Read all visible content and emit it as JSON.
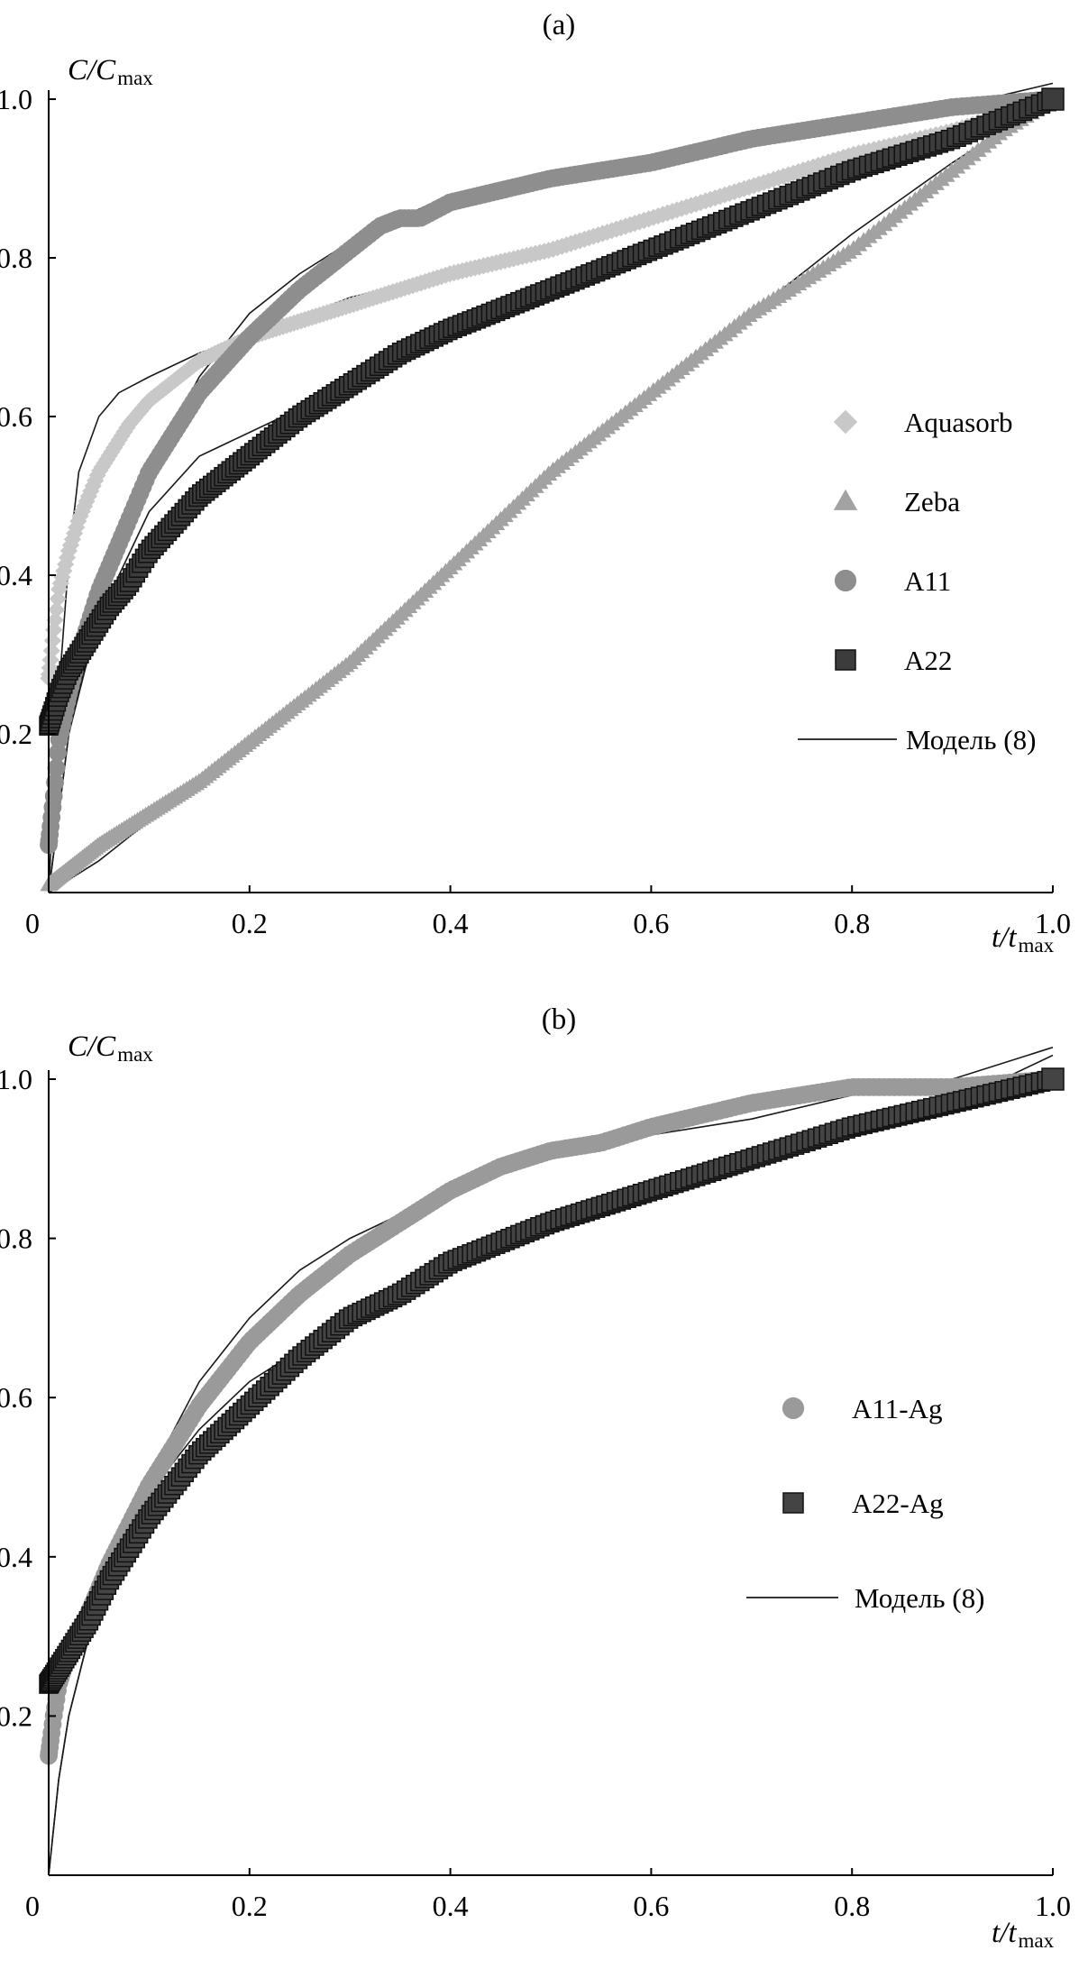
{
  "colors": {
    "Aquasorb": "#c8c8c8",
    "Zeba": "#a2a2a2",
    "A11": "#8e8e8e",
    "A22": "#3c3c3c",
    "A11-Ag": "#9a9a9a",
    "A22-Ag": "#444444",
    "model": "#1a1a1a",
    "axis": "#000000"
  },
  "chart_data": [
    {
      "type": "scatter",
      "panel_label": "(a)",
      "ylabel": {
        "main": "C/C",
        "sub": "max"
      },
      "xlabel": {
        "main": "t/t",
        "sub": "max"
      },
      "xlim": [
        0,
        1.0
      ],
      "ylim": [
        0,
        1.0
      ],
      "xticks": [
        {
          "value": 0,
          "label": "0"
        },
        {
          "value": 0.2,
          "label": "0.2"
        },
        {
          "value": 0.4,
          "label": "0.4"
        },
        {
          "value": 0.6,
          "label": "0.6"
        },
        {
          "value": 0.8,
          "label": "0.8"
        },
        {
          "value": 1.0,
          "label": "1.0"
        }
      ],
      "yticks": [
        {
          "value": 0.2,
          "label": "0.2"
        },
        {
          "value": 0.4,
          "label": "0.4"
        },
        {
          "value": 0.6,
          "label": "0.6"
        },
        {
          "value": 0.8,
          "label": "0.8"
        },
        {
          "value": 1.0,
          "label": "1.0"
        }
      ],
      "legend": [
        {
          "label": "Aquasorb",
          "marker": "diamond",
          "series": "Aquasorb"
        },
        {
          "label": "Zeba",
          "marker": "triangle",
          "series": "Zeba"
        },
        {
          "label": "A11",
          "marker": "circle",
          "series": "A11"
        },
        {
          "label": "A22",
          "marker": "square",
          "series": "A22"
        },
        {
          "label": "Модель (8)",
          "marker": "line",
          "series": "model"
        }
      ],
      "series": [
        {
          "name": "Aquasorb",
          "marker": "diamond",
          "points": [
            [
              0.0,
              0.27
            ],
            [
              0.005,
              0.33
            ],
            [
              0.01,
              0.38
            ],
            [
              0.02,
              0.43
            ],
            [
              0.03,
              0.47
            ],
            [
              0.05,
              0.53
            ],
            [
              0.08,
              0.59
            ],
            [
              0.1,
              0.62
            ],
            [
              0.15,
              0.67
            ],
            [
              0.2,
              0.7
            ],
            [
              0.25,
              0.72
            ],
            [
              0.3,
              0.74
            ],
            [
              0.35,
              0.76
            ],
            [
              0.4,
              0.78
            ],
            [
              0.5,
              0.81
            ],
            [
              0.6,
              0.85
            ],
            [
              0.7,
              0.89
            ],
            [
              0.8,
              0.93
            ],
            [
              0.9,
              0.96
            ],
            [
              1.0,
              1.0
            ]
          ]
        },
        {
          "name": "Zeba",
          "marker": "triangle",
          "points": [
            [
              0.0,
              0.01
            ],
            [
              0.05,
              0.06
            ],
            [
              0.1,
              0.1
            ],
            [
              0.15,
              0.14
            ],
            [
              0.2,
              0.19
            ],
            [
              0.25,
              0.24
            ],
            [
              0.3,
              0.29
            ],
            [
              0.35,
              0.35
            ],
            [
              0.4,
              0.41
            ],
            [
              0.45,
              0.47
            ],
            [
              0.5,
              0.53
            ],
            [
              0.55,
              0.58
            ],
            [
              0.6,
              0.63
            ],
            [
              0.65,
              0.68
            ],
            [
              0.7,
              0.73
            ],
            [
              0.75,
              0.77
            ],
            [
              0.8,
              0.81
            ],
            [
              0.85,
              0.86
            ],
            [
              0.9,
              0.91
            ],
            [
              0.95,
              0.96
            ],
            [
              1.0,
              1.0
            ]
          ]
        },
        {
          "name": "A11",
          "marker": "circle",
          "points": [
            [
              0.0,
              0.06
            ],
            [
              0.005,
              0.12
            ],
            [
              0.01,
              0.19
            ],
            [
              0.02,
              0.25
            ],
            [
              0.03,
              0.3
            ],
            [
              0.05,
              0.38
            ],
            [
              0.08,
              0.47
            ],
            [
              0.1,
              0.53
            ],
            [
              0.15,
              0.63
            ],
            [
              0.2,
              0.7
            ],
            [
              0.25,
              0.76
            ],
            [
              0.3,
              0.81
            ],
            [
              0.33,
              0.84
            ],
            [
              0.35,
              0.85
            ],
            [
              0.37,
              0.85
            ],
            [
              0.4,
              0.87
            ],
            [
              0.5,
              0.9
            ],
            [
              0.6,
              0.92
            ],
            [
              0.7,
              0.95
            ],
            [
              0.8,
              0.97
            ],
            [
              0.9,
              0.99
            ],
            [
              1.0,
              1.0
            ]
          ]
        },
        {
          "name": "A22",
          "marker": "square",
          "points": [
            [
              0.0,
              0.21
            ],
            [
              0.005,
              0.23
            ],
            [
              0.01,
              0.25
            ],
            [
              0.02,
              0.28
            ],
            [
              0.04,
              0.32
            ],
            [
              0.06,
              0.36
            ],
            [
              0.08,
              0.39
            ],
            [
              0.1,
              0.43
            ],
            [
              0.15,
              0.5
            ],
            [
              0.2,
              0.55
            ],
            [
              0.25,
              0.6
            ],
            [
              0.3,
              0.64
            ],
            [
              0.35,
              0.68
            ],
            [
              0.4,
              0.71
            ],
            [
              0.5,
              0.76
            ],
            [
              0.6,
              0.81
            ],
            [
              0.7,
              0.86
            ],
            [
              0.8,
              0.91
            ],
            [
              0.9,
              0.95
            ],
            [
              1.0,
              1.0
            ]
          ]
        }
      ],
      "model_curves": [
        {
          "fits": "Aquasorb",
          "points": [
            [
              0.0,
              0.0
            ],
            [
              0.01,
              0.25
            ],
            [
              0.02,
              0.42
            ],
            [
              0.03,
              0.53
            ],
            [
              0.05,
              0.6
            ],
            [
              0.07,
              0.63
            ],
            [
              0.1,
              0.65
            ],
            [
              0.15,
              0.68
            ],
            [
              0.2,
              0.7
            ],
            [
              0.3,
              0.75
            ],
            [
              0.4,
              0.78
            ],
            [
              0.5,
              0.81
            ],
            [
              0.6,
              0.85
            ],
            [
              0.7,
              0.89
            ],
            [
              0.8,
              0.93
            ],
            [
              0.9,
              0.96
            ],
            [
              1.0,
              0.99
            ]
          ]
        },
        {
          "fits": "Zeba",
          "points": [
            [
              0.0,
              0.0
            ],
            [
              0.05,
              0.04
            ],
            [
              0.1,
              0.09
            ],
            [
              0.2,
              0.18
            ],
            [
              0.3,
              0.29
            ],
            [
              0.4,
              0.41
            ],
            [
              0.5,
              0.52
            ],
            [
              0.6,
              0.63
            ],
            [
              0.7,
              0.73
            ],
            [
              0.8,
              0.83
            ],
            [
              0.9,
              0.92
            ],
            [
              1.0,
              1.0
            ]
          ]
        },
        {
          "fits": "A11",
          "points": [
            [
              0.0,
              0.0
            ],
            [
              0.02,
              0.2
            ],
            [
              0.05,
              0.36
            ],
            [
              0.1,
              0.53
            ],
            [
              0.15,
              0.65
            ],
            [
              0.2,
              0.73
            ],
            [
              0.25,
              0.78
            ],
            [
              0.3,
              0.82
            ],
            [
              0.35,
              0.85
            ],
            [
              0.4,
              0.88
            ],
            [
              0.5,
              0.9
            ],
            [
              0.6,
              0.93
            ],
            [
              0.7,
              0.95
            ],
            [
              0.8,
              0.97
            ],
            [
              0.9,
              0.99
            ],
            [
              1.0,
              1.02
            ]
          ]
        },
        {
          "fits": "A22",
          "points": [
            [
              0.0,
              0.0
            ],
            [
              0.02,
              0.2
            ],
            [
              0.04,
              0.3
            ],
            [
              0.07,
              0.4
            ],
            [
              0.1,
              0.48
            ],
            [
              0.15,
              0.55
            ],
            [
              0.2,
              0.58
            ],
            [
              0.25,
              0.61
            ],
            [
              0.3,
              0.65
            ],
            [
              0.4,
              0.7
            ],
            [
              0.5,
              0.75
            ],
            [
              0.6,
              0.81
            ],
            [
              0.7,
              0.86
            ],
            [
              0.8,
              0.91
            ],
            [
              0.9,
              0.96
            ],
            [
              1.0,
              1.01
            ]
          ]
        }
      ]
    },
    {
      "type": "scatter",
      "panel_label": "(b)",
      "ylabel": {
        "main": "C/C",
        "sub": "max"
      },
      "xlabel": {
        "main": "t/t",
        "sub": "max"
      },
      "xlim": [
        0,
        1.0
      ],
      "ylim": [
        0,
        1.0
      ],
      "xticks": [
        {
          "value": 0,
          "label": "0"
        },
        {
          "value": 0.2,
          "label": "0.2"
        },
        {
          "value": 0.4,
          "label": "0.4"
        },
        {
          "value": 0.6,
          "label": "0.6"
        },
        {
          "value": 0.8,
          "label": "0.8"
        },
        {
          "value": 1.0,
          "label": "1.0"
        }
      ],
      "yticks": [
        {
          "value": 0.2,
          "label": "0.2"
        },
        {
          "value": 0.4,
          "label": "0.4"
        },
        {
          "value": 0.6,
          "label": "0.6"
        },
        {
          "value": 0.8,
          "label": "0.8"
        },
        {
          "value": 1.0,
          "label": "1.0"
        }
      ],
      "legend": [
        {
          "label": "A11-Ag",
          "marker": "circle",
          "series": "A11-Ag"
        },
        {
          "label": "A22-Ag",
          "marker": "square",
          "series": "A22-Ag"
        },
        {
          "label": "Модель (8)",
          "marker": "line",
          "series": "model"
        }
      ],
      "series": [
        {
          "name": "A11-Ag",
          "marker": "circle",
          "points": [
            [
              0.0,
              0.15
            ],
            [
              0.005,
              0.2
            ],
            [
              0.01,
              0.24
            ],
            [
              0.02,
              0.28
            ],
            [
              0.04,
              0.33
            ],
            [
              0.06,
              0.39
            ],
            [
              0.08,
              0.44
            ],
            [
              0.1,
              0.49
            ],
            [
              0.15,
              0.59
            ],
            [
              0.2,
              0.67
            ],
            [
              0.25,
              0.73
            ],
            [
              0.3,
              0.78
            ],
            [
              0.35,
              0.82
            ],
            [
              0.4,
              0.86
            ],
            [
              0.45,
              0.89
            ],
            [
              0.5,
              0.91
            ],
            [
              0.55,
              0.92
            ],
            [
              0.6,
              0.94
            ],
            [
              0.7,
              0.97
            ],
            [
              0.8,
              0.99
            ],
            [
              0.9,
              0.99
            ],
            [
              1.0,
              1.0
            ]
          ]
        },
        {
          "name": "A22-Ag",
          "marker": "square",
          "points": [
            [
              0.0,
              0.24
            ],
            [
              0.01,
              0.26
            ],
            [
              0.02,
              0.28
            ],
            [
              0.04,
              0.32
            ],
            [
              0.06,
              0.37
            ],
            [
              0.08,
              0.41
            ],
            [
              0.1,
              0.45
            ],
            [
              0.15,
              0.53
            ],
            [
              0.2,
              0.59
            ],
            [
              0.25,
              0.65
            ],
            [
              0.3,
              0.7
            ],
            [
              0.35,
              0.73
            ],
            [
              0.4,
              0.77
            ],
            [
              0.5,
              0.82
            ],
            [
              0.6,
              0.86
            ],
            [
              0.7,
              0.9
            ],
            [
              0.8,
              0.94
            ],
            [
              0.9,
              0.97
            ],
            [
              1.0,
              1.0
            ]
          ]
        }
      ],
      "model_curves": [
        {
          "fits": "A11-Ag",
          "points": [
            [
              0.0,
              0.0
            ],
            [
              0.01,
              0.12
            ],
            [
              0.02,
              0.2
            ],
            [
              0.04,
              0.3
            ],
            [
              0.06,
              0.38
            ],
            [
              0.08,
              0.44
            ],
            [
              0.1,
              0.5
            ],
            [
              0.15,
              0.62
            ],
            [
              0.2,
              0.7
            ],
            [
              0.25,
              0.76
            ],
            [
              0.3,
              0.8
            ],
            [
              0.4,
              0.86
            ],
            [
              0.5,
              0.9
            ],
            [
              0.6,
              0.93
            ],
            [
              0.7,
              0.95
            ],
            [
              0.8,
              0.98
            ],
            [
              0.9,
              1.0
            ],
            [
              1.0,
              1.04
            ]
          ]
        },
        {
          "fits": "A22-Ag",
          "points": [
            [
              0.0,
              0.0
            ],
            [
              0.01,
              0.12
            ],
            [
              0.02,
              0.2
            ],
            [
              0.04,
              0.3
            ],
            [
              0.06,
              0.37
            ],
            [
              0.08,
              0.43
            ],
            [
              0.1,
              0.48
            ],
            [
              0.15,
              0.56
            ],
            [
              0.2,
              0.62
            ],
            [
              0.25,
              0.66
            ],
            [
              0.3,
              0.7
            ],
            [
              0.4,
              0.76
            ],
            [
              0.5,
              0.81
            ],
            [
              0.6,
              0.86
            ],
            [
              0.7,
              0.9
            ],
            [
              0.8,
              0.94
            ],
            [
              0.9,
              0.97
            ],
            [
              1.0,
              1.03
            ]
          ]
        }
      ]
    }
  ]
}
